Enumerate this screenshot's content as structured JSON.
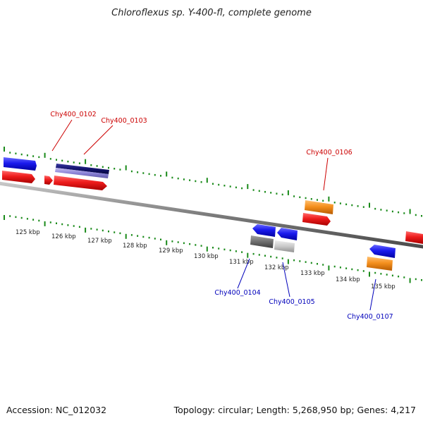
{
  "title": "Chloroflexus sp. Y-400-fl, complete genome",
  "footer": {
    "accession": "Accession: NC_012032",
    "summary": "Topology: circular; Length: 5,268,950 bp; Genes: 4,217"
  },
  "scale": {
    "ticks": [
      "125 kbp",
      "126 kbp",
      "127 kbp",
      "128 kbp",
      "129 kbp",
      "130 kbp",
      "131 kbp",
      "132 kbp",
      "133 kbp",
      "134 kbp",
      "135 kbp"
    ]
  },
  "colors": {
    "forward_red": "#ee1c1c",
    "reverse_blue": "#1a1aee",
    "orange": "#f5901e",
    "navy": "#14146e",
    "lavender": "#8c84d8",
    "dark_gray": "#6e6e6e",
    "light_gray": "#c8c8c8",
    "tick_green": "#1a8a1a",
    "label_red": "#cc0000",
    "label_blue": "#0000bb",
    "backbone": "#8a8a8a"
  },
  "gene_labels": [
    {
      "text": "Chy400_0102",
      "strand": "forward"
    },
    {
      "text": "Chy400_0103",
      "strand": "forward"
    },
    {
      "text": "Chy400_0106",
      "strand": "forward"
    },
    {
      "text": "Chy400_0104",
      "strand": "reverse"
    },
    {
      "text": "Chy400_0105",
      "strand": "reverse"
    },
    {
      "text": "Chy400_0107",
      "strand": "reverse"
    }
  ]
}
